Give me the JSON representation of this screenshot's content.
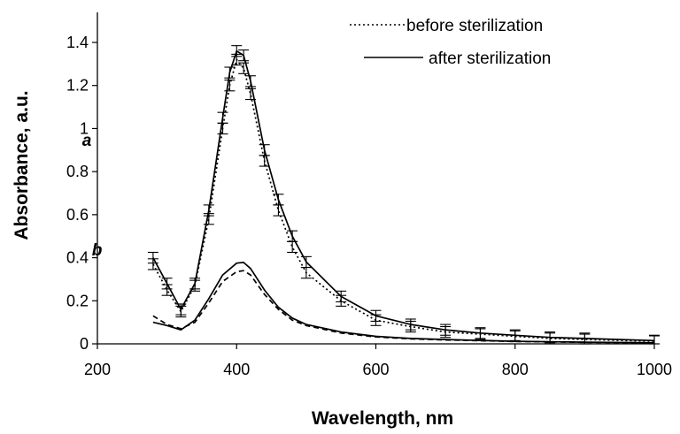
{
  "chart_data": {
    "type": "line",
    "xlabel": "Wavelength, nm",
    "ylabel": "Absorbance, a.u.",
    "xlim": [
      200,
      1000
    ],
    "ylim": [
      0,
      1.4
    ],
    "x_ticks": [
      "200",
      "400",
      "600",
      "800",
      "1000"
    ],
    "x_tick_values": [
      200,
      400,
      600,
      800,
      1000
    ],
    "y_ticks": [
      "0",
      "0.2",
      "0.4",
      "0.6",
      "0.8",
      "1",
      "1.2",
      "1.4"
    ],
    "y_tick_values": [
      0,
      0.2,
      0.4,
      0.6,
      0.8,
      1.0,
      1.2,
      1.4
    ],
    "grid": false,
    "legend_position": "top-right",
    "legend": [
      {
        "label": "before sterilization",
        "style": "dotted"
      },
      {
        "label": "after sterilization",
        "style": "solid"
      }
    ],
    "series": [
      {
        "curve": "a",
        "style": "solid",
        "x": [
          280,
          300,
          320,
          340,
          360,
          380,
          390,
          400,
          410,
          420,
          440,
          460,
          480,
          500,
          550,
          600,
          650,
          700,
          750,
          800,
          850,
          900,
          1000
        ],
        "y": [
          0.4,
          0.28,
          0.16,
          0.28,
          0.62,
          1.05,
          1.26,
          1.36,
          1.34,
          1.22,
          0.9,
          0.67,
          0.5,
          0.38,
          0.22,
          0.13,
          0.09,
          0.065,
          0.05,
          0.04,
          0.03,
          0.025,
          0.015
        ]
      },
      {
        "curve": "a",
        "style": "dotted",
        "x": [
          280,
          300,
          320,
          340,
          360,
          380,
          390,
          400,
          410,
          420,
          440,
          460,
          480,
          500,
          550,
          600,
          650,
          700,
          750,
          800,
          850,
          900,
          1000
        ],
        "y": [
          0.37,
          0.25,
          0.15,
          0.27,
          0.58,
          1.0,
          1.2,
          1.32,
          1.28,
          1.16,
          0.85,
          0.62,
          0.45,
          0.33,
          0.2,
          0.11,
          0.08,
          0.055,
          0.045,
          0.035,
          0.025,
          0.02,
          0.012
        ]
      },
      {
        "curve": "b",
        "style": "solid",
        "x": [
          280,
          300,
          320,
          340,
          360,
          380,
          400,
          410,
          420,
          440,
          460,
          480,
          500,
          550,
          600,
          650,
          700,
          800,
          900,
          1000
        ],
        "y": [
          0.1,
          0.085,
          0.065,
          0.11,
          0.21,
          0.32,
          0.375,
          0.378,
          0.35,
          0.25,
          0.17,
          0.12,
          0.09,
          0.055,
          0.035,
          0.025,
          0.02,
          0.012,
          0.008,
          0.005
        ]
      },
      {
        "curve": "b",
        "style": "dashed",
        "x": [
          280,
          300,
          320,
          340,
          360,
          380,
          400,
          410,
          420,
          440,
          460,
          480,
          500,
          550,
          600,
          650,
          700,
          800,
          900,
          1000
        ],
        "y": [
          0.13,
          0.09,
          0.07,
          0.1,
          0.19,
          0.29,
          0.335,
          0.34,
          0.32,
          0.23,
          0.16,
          0.11,
          0.085,
          0.05,
          0.032,
          0.023,
          0.018,
          0.011,
          0.007,
          0.005
        ]
      }
    ],
    "error_bar_half_height": 0.025,
    "annotations": [
      {
        "text": "a",
        "x": 178,
        "y": 0.92
      },
      {
        "text": "b",
        "x": 192,
        "y": 0.41
      }
    ]
  }
}
